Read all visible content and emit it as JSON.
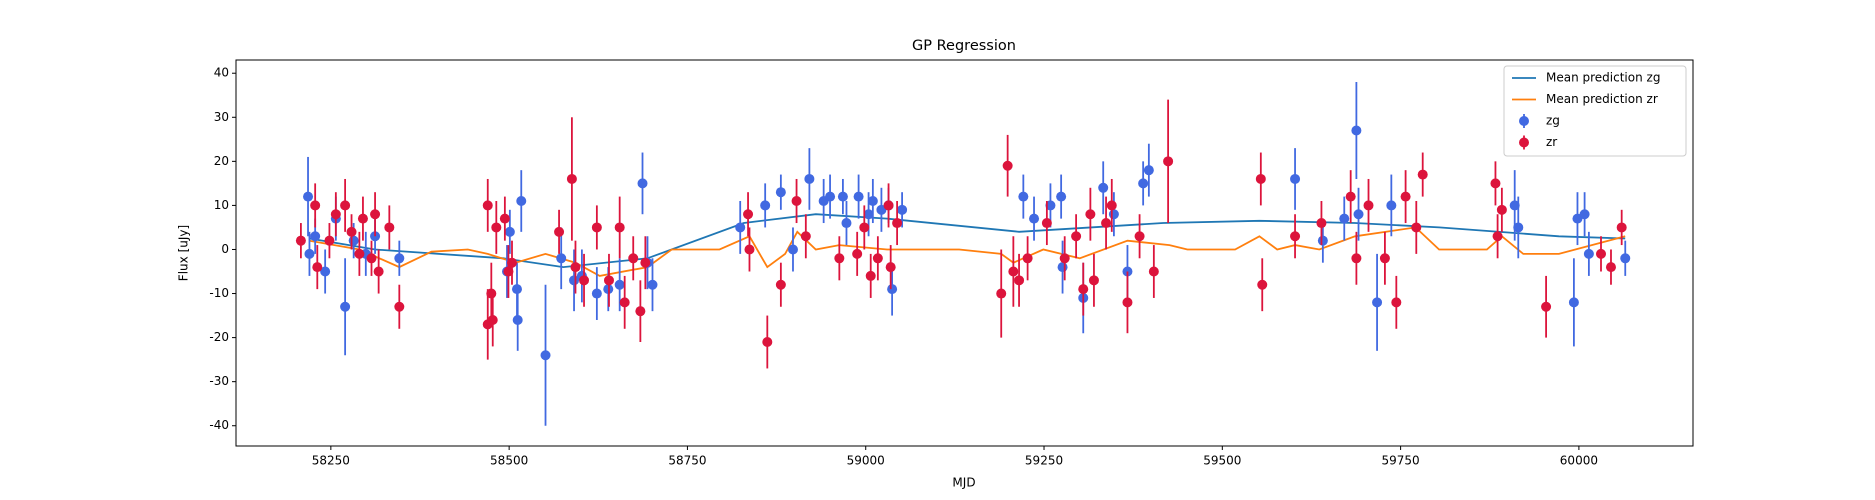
{
  "chart_data": {
    "type": "scatter",
    "title": "GP Regression",
    "xlabel": "MJD",
    "ylabel": "Flux [uJy]",
    "xlim": [
      58117,
      60160
    ],
    "ylim": [
      -44.6,
      43
    ],
    "xticks": [
      58250,
      58500,
      58750,
      59000,
      59250,
      59500,
      59750,
      60000
    ],
    "yticks": [
      -40,
      -30,
      -20,
      -10,
      0,
      10,
      20,
      30,
      40
    ],
    "legend": "upper right",
    "series": [
      {
        "name": "Mean prediction zg",
        "kind": "line",
        "color": "#1f77b4",
        "x": [
          58220,
          58312,
          58492,
          58576,
          58694,
          58829,
          58930,
          59030,
          59215,
          59417,
          59552,
          59686,
          59804,
          59972,
          60065
        ],
        "values": [
          2.5,
          0,
          -2,
          -4,
          -2,
          6,
          8,
          7,
          4,
          6,
          6.5,
          6,
          5,
          3,
          2.5
        ]
      },
      {
        "name": "Mean prediction zr",
        "kind": "line",
        "color": "#ff7f0e",
        "x": [
          58220,
          58290,
          58346,
          58391,
          58442,
          58470,
          58509,
          58551,
          58593,
          58627,
          58694,
          58728,
          58795,
          58837,
          58862,
          58887,
          58904,
          58930,
          58963,
          59030,
          59064,
          59131,
          59190,
          59207,
          59249,
          59300,
          59367,
          59426,
          59451,
          59518,
          59552,
          59577,
          59602,
          59636,
          59686,
          59771,
          59804,
          59871,
          59892,
          59922,
          59972,
          60065
        ],
        "values": [
          2,
          0,
          -4,
          -0.5,
          0,
          -1,
          -3,
          -1,
          -3,
          -6,
          -4,
          0,
          0,
          3,
          -4,
          -1,
          4,
          0,
          1,
          0,
          0,
          0,
          -1,
          -3,
          0,
          -2,
          2,
          1,
          0,
          0,
          3,
          0,
          1,
          0,
          3,
          5,
          0,
          0,
          3,
          -1,
          -1,
          3
        ]
      },
      {
        "name": "zg",
        "kind": "errorbar",
        "color": "#4169e1",
        "x": [
          58218,
          58220,
          58228,
          58242,
          58257,
          58270,
          58282,
          58299,
          58312,
          58346,
          58497,
          58501,
          58511,
          58512,
          58517,
          58551,
          58573,
          58591,
          58602,
          58623,
          58639,
          58655,
          58687,
          58694,
          58701,
          58824,
          58859,
          58881,
          58898,
          58921,
          58941,
          58950,
          58968,
          58973,
          58990,
          59004,
          59010,
          59022,
          59032,
          59037,
          59051,
          59221,
          59236,
          59259,
          59274,
          59276,
          59305,
          59333,
          59348,
          59367,
          59389,
          59397,
          59602,
          59641,
          59671,
          59688,
          59691,
          59717,
          59737,
          59910,
          59915,
          59993,
          59998,
          60008,
          60014,
          60065
        ],
        "values": [
          12,
          -1,
          3,
          -5,
          7,
          -13,
          2,
          -1,
          3,
          -2,
          -5,
          4,
          -9,
          -16,
          11,
          -24,
          -2,
          -7,
          -6,
          -10,
          -9,
          -8,
          15,
          -3,
          -8,
          5,
          10,
          13,
          0,
          16,
          11,
          12,
          12,
          6,
          12,
          8,
          11,
          9,
          10,
          -9,
          9,
          12,
          7,
          10,
          12,
          -4,
          -11,
          14,
          8,
          -5,
          15,
          18,
          16,
          2,
          7,
          27,
          8,
          -12,
          10,
          10,
          5,
          -12,
          7,
          8,
          -1,
          -2
        ],
        "errors": [
          9,
          5,
          4,
          5,
          5,
          11,
          4,
          5,
          4,
          4,
          6,
          5,
          6,
          7,
          7,
          16,
          7,
          7,
          6,
          6,
          5,
          6,
          7,
          6,
          6,
          6,
          5,
          4,
          5,
          7,
          5,
          5,
          4,
          5,
          5,
          5,
          5,
          5,
          4,
          6,
          4,
          5,
          5,
          5,
          5,
          6,
          8,
          6,
          5,
          6,
          5,
          6,
          7,
          5,
          5,
          11,
          6,
          11,
          7,
          8,
          7,
          10,
          6,
          5,
          5,
          4
        ]
      },
      {
        "name": "zr",
        "kind": "errorbar",
        "color": "#dc143c",
        "x": [
          58208,
          58228,
          58231,
          58248,
          58257,
          58270,
          58279,
          58290,
          58295,
          58307,
          58312,
          58317,
          58332,
          58346,
          58470,
          58470,
          58475,
          58477,
          58482,
          58494,
          58499,
          58504,
          58570,
          58588,
          58593,
          58605,
          58623,
          58640,
          58655,
          58662,
          58674,
          58684,
          58691,
          58835,
          58837,
          58862,
          58881,
          58903,
          58916,
          58963,
          58988,
          58998,
          59007,
          59017,
          59032,
          59035,
          59044,
          59190,
          59199,
          59207,
          59215,
          59227,
          59254,
          59279,
          59295,
          59305,
          59315,
          59320,
          59337,
          59345,
          59367,
          59384,
          59404,
          59424,
          59554,
          59556,
          59602,
          59639,
          59680,
          59688,
          59705,
          59728,
          59744,
          59757,
          59772,
          59781,
          59883,
          59886,
          59892,
          59954,
          60031,
          60045,
          60060
        ],
        "values": [
          2,
          10,
          -4,
          2,
          8,
          10,
          4,
          -1,
          7,
          -2,
          8,
          -5,
          5,
          -13,
          10,
          -17,
          -10,
          -16,
          5,
          7,
          -5,
          -3,
          4,
          16,
          -4,
          -7,
          5,
          -7,
          5,
          -12,
          -2,
          -14,
          -3,
          8,
          0,
          -21,
          -8,
          11,
          3,
          -2,
          -1,
          5,
          -6,
          -2,
          10,
          -4,
          6,
          -10,
          19,
          -5,
          -7,
          -2,
          6,
          -2,
          3,
          -9,
          8,
          -7,
          6,
          10,
          -12,
          3,
          -5,
          20,
          16,
          -8,
          3,
          6,
          12,
          -2,
          10,
          -2,
          -12,
          12,
          5,
          17,
          15,
          3,
          9,
          -13,
          -1,
          -4,
          5
        ],
        "errors": [
          4,
          5,
          5,
          4,
          5,
          6,
          4,
          5,
          5,
          4,
          5,
          5,
          5,
          5,
          6,
          8,
          7,
          6,
          6,
          5,
          6,
          5,
          5,
          14,
          6,
          6,
          5,
          6,
          7,
          6,
          5,
          7,
          6,
          5,
          5,
          6,
          5,
          5,
          5,
          5,
          5,
          5,
          5,
          5,
          5,
          5,
          5,
          10,
          7,
          8,
          6,
          5,
          5,
          5,
          5,
          6,
          6,
          6,
          6,
          6,
          7,
          5,
          6,
          14,
          6,
          6,
          5,
          5,
          6,
          6,
          6,
          6,
          6,
          6,
          6,
          5,
          5,
          5,
          5,
          7,
          4,
          4,
          4
        ]
      }
    ]
  }
}
